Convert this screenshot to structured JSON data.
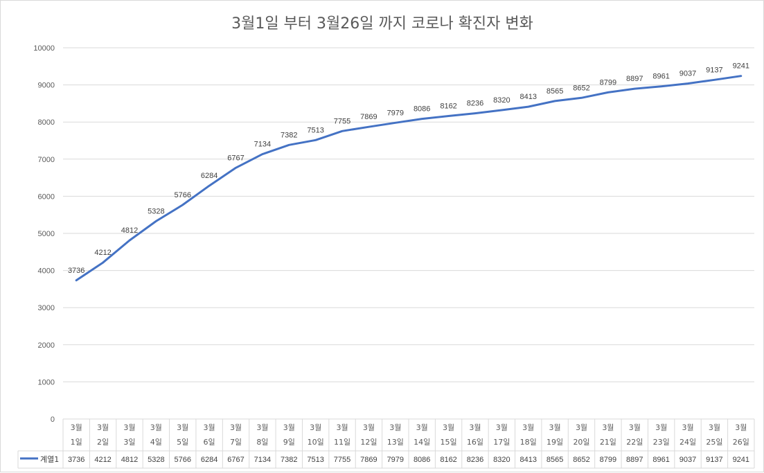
{
  "chart_data": {
    "type": "line",
    "title": "3월1일 부터 3월26일 까지 코로나 확진자 변화",
    "xlabel": "",
    "ylabel": "",
    "ylim": [
      0,
      10000
    ],
    "yticks": [
      0,
      1000,
      2000,
      3000,
      4000,
      5000,
      6000,
      7000,
      8000,
      9000,
      10000
    ],
    "grid": true,
    "legend": "data-table",
    "data_table": true,
    "categories": [
      [
        "3월",
        "1일"
      ],
      [
        "3월",
        "2일"
      ],
      [
        "3월",
        "3일"
      ],
      [
        "3월",
        "4일"
      ],
      [
        "3월",
        "5일"
      ],
      [
        "3월",
        "6일"
      ],
      [
        "3월",
        "7일"
      ],
      [
        "3월",
        "8일"
      ],
      [
        "3월",
        "9일"
      ],
      [
        "3월",
        "10일"
      ],
      [
        "3월",
        "11일"
      ],
      [
        "3월",
        "12일"
      ],
      [
        "3월",
        "13일"
      ],
      [
        "3월",
        "14일"
      ],
      [
        "3월",
        "15일"
      ],
      [
        "3월",
        "16일"
      ],
      [
        "3월",
        "17일"
      ],
      [
        "3월",
        "18일"
      ],
      [
        "3월",
        "19일"
      ],
      [
        "3월",
        "20일"
      ],
      [
        "3월",
        "21일"
      ],
      [
        "3월",
        "22일"
      ],
      [
        "3월",
        "23일"
      ],
      [
        "3월",
        "24일"
      ],
      [
        "3월",
        "25일"
      ],
      [
        "3월",
        "26일"
      ]
    ],
    "series": [
      {
        "name": "계열1",
        "color": "#4472c4",
        "values": [
          3736,
          4212,
          4812,
          5328,
          5766,
          6284,
          6767,
          7134,
          7382,
          7513,
          7755,
          7869,
          7979,
          8086,
          8162,
          8236,
          8320,
          8413,
          8565,
          8652,
          8799,
          8897,
          8961,
          9037,
          9137,
          9241
        ]
      }
    ]
  }
}
